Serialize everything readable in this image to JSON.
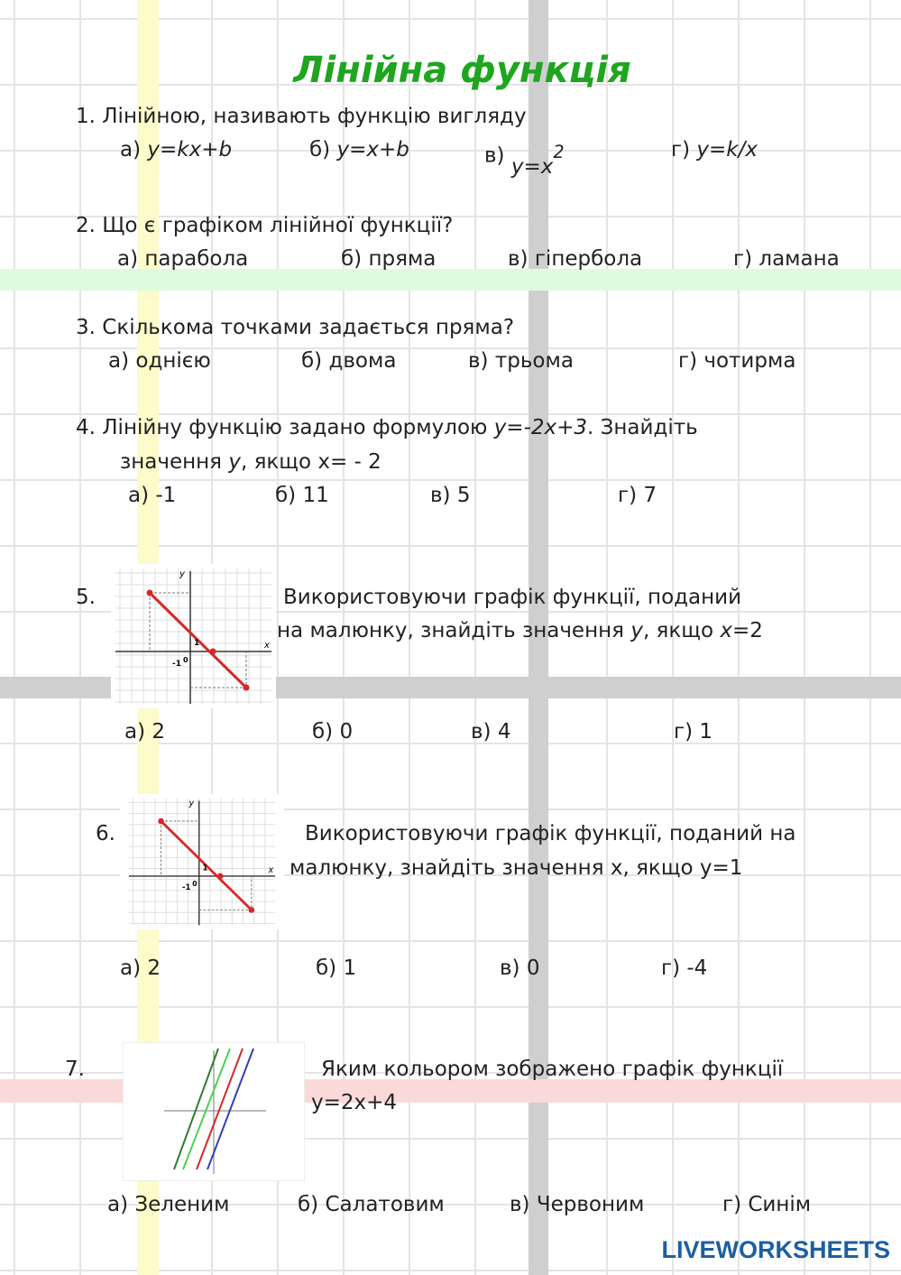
{
  "title": "Лінійна функція",
  "q1": {
    "text": "1.  Лінійною, називають функцію вигляду",
    "a": "а)",
    "a_v": "y=kx+b",
    "b": "б)",
    "b_v": "y=x+b",
    "c": "в)",
    "c_v": "y=x",
    "c_sup": "2",
    "d": "г)",
    "d_v": "y=k/x"
  },
  "q2": {
    "text": "2. Що є графіком лінійної функції?",
    "a": "а) парабола",
    "b": "б) пряма",
    "c": "в) гіпербола",
    "d": "г) ламана"
  },
  "q3": {
    "text": "3. Скількома точками задається пряма?",
    "a": "а) однією",
    "b": "б) двома",
    "c": "в) трьома",
    "d": "г) чотирма"
  },
  "q4": {
    "text1": "4. Лінійну функцію задано формулою ",
    "formula": "y=-2x+3",
    "text2": ". Знайдіть",
    "text3": "значення ",
    "yv": "y",
    "text4": ", якщо x= - 2",
    "a": "а) -1",
    "b": "б) 11",
    "c": "в)  5",
    "d": "г)  7"
  },
  "q5": {
    "num": "5.",
    "line1": "Використовуючи графік функції, поданий",
    "line2a": "на малюнку, знайдіть значення ",
    "yv": "y",
    "line2b": ", якщо ",
    "xv": "x",
    "line2c": "=2",
    "a": "а)  2",
    "b": "б) 0",
    "c": "в) 4",
    "d": "г) 1"
  },
  "q6": {
    "num": "6.",
    "line1": "Використовуючи графік функції, поданий на",
    "line2": "малюнку, знайдіть значення х, якщо у=1",
    "a": "а)  2",
    "b": "б) 1",
    "c": "в) 0",
    "d": "г)  -4"
  },
  "q7": {
    "num": "7.",
    "line1": "Яким кольором зображено графік функції",
    "line2": "у=2х+4",
    "a": "а) Зеленим",
    "b": "б) Салатовим",
    "c": "в)  Червоним",
    "d": "г)  Синім"
  },
  "graph_labels": {
    "y": "y",
    "x": "x",
    "one": "1",
    "zero": "0",
    "minus_one": "-1"
  },
  "logo": "LIVEWORKSHEETS",
  "colors": {
    "title": "#1fa51f",
    "line_red": "#d62828",
    "green_dark": "#2e7d32",
    "green_light": "#4cd34c",
    "blue": "#3340b0"
  }
}
